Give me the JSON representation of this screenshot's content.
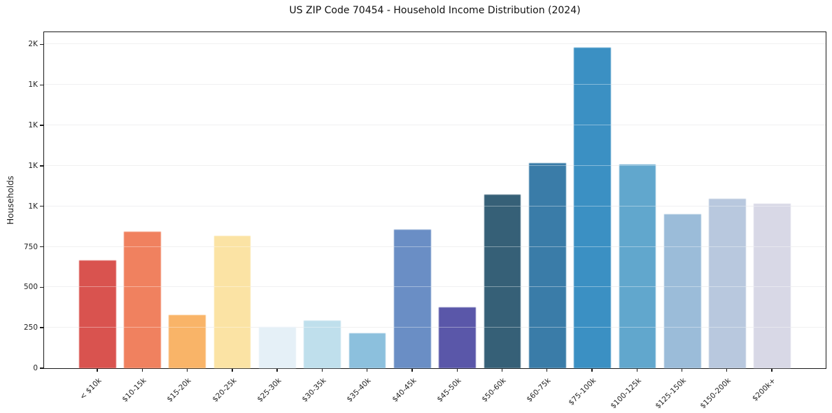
{
  "title": "US ZIP Code 70454 - Household Income Distribution (2024)",
  "chart_data": {
    "type": "bar",
    "title": "US ZIP Code 70454 - Household Income Distribution (2024)",
    "xlabel": "",
    "ylabel": "Households",
    "ylim": [
      0,
      2075
    ],
    "grid": "horizontal",
    "legend": "none",
    "background_color": "#ffffff",
    "spine_color": "#1a1a1a",
    "gridline_color": "#e7e7e9",
    "yticks": [
      {
        "value": 0,
        "label": "0"
      },
      {
        "value": 250,
        "label": "250"
      },
      {
        "value": 500,
        "label": "500"
      },
      {
        "value": 750,
        "label": "750"
      },
      {
        "value": 1000,
        "label": "1K"
      },
      {
        "value": 1250,
        "label": "1K"
      },
      {
        "value": 1500,
        "label": "1K"
      },
      {
        "value": 1750,
        "label": "1K"
      },
      {
        "value": 2000,
        "label": "2K"
      }
    ],
    "categories": [
      "< $10k",
      "$10-15k",
      "$15-20k",
      "$20-25k",
      "$25-30k",
      "$30-35k",
      "$35-40k",
      "$40-45k",
      "$45-50k",
      "$50-60k",
      "$60-75k",
      "$75-100k",
      "$100-125k",
      "$125-150k",
      "$150-200k",
      "$200k+"
    ],
    "values": [
      665,
      845,
      330,
      815,
      255,
      295,
      215,
      855,
      375,
      1070,
      1265,
      1980,
      1260,
      950,
      1045,
      1015
    ],
    "bar_colors": [
      "#d9534f",
      "#f0815f",
      "#f9b468",
      "#fbe3a4",
      "#e5f0f7",
      "#bfdfec",
      "#8cc0dd",
      "#6a8ec5",
      "#5a57a9",
      "#366077",
      "#3a7ca8",
      "#3b90c3",
      "#61a7cd",
      "#9bbcd9",
      "#b8c8de",
      "#d8d8e6"
    ]
  }
}
